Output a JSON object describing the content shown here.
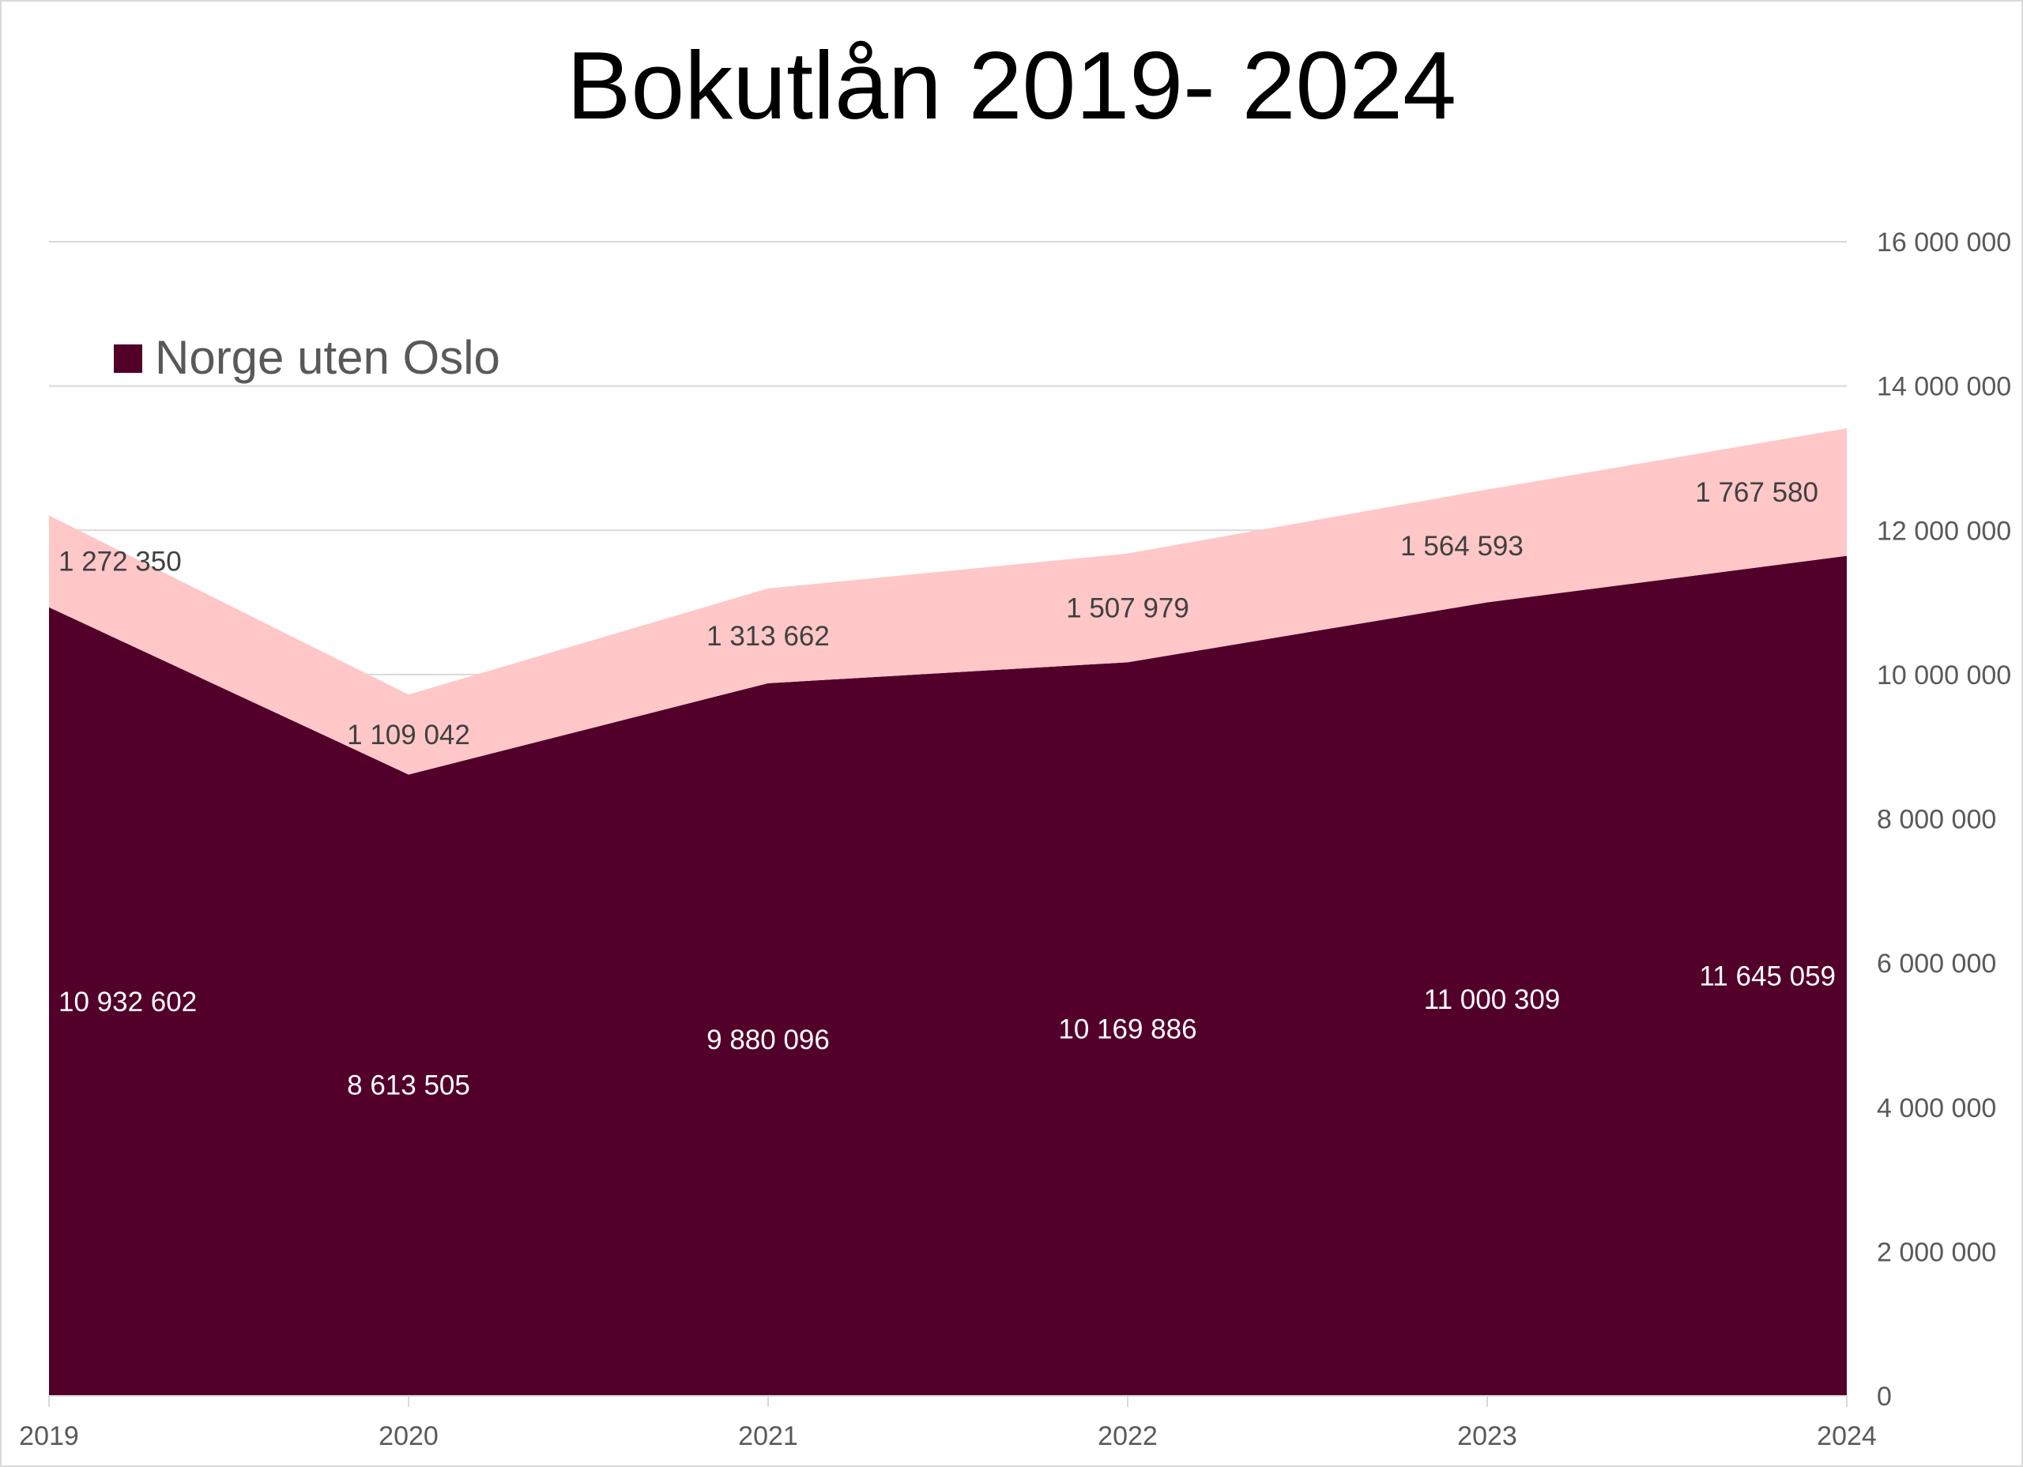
{
  "chart_data": {
    "type": "area",
    "stacked": true,
    "title": "Bokutlån 2019- 2024",
    "categories": [
      "2019",
      "2020",
      "2021",
      "2022",
      "2023",
      "2024"
    ],
    "series": [
      {
        "name": "Norge uten Oslo",
        "color": "#52002a",
        "values": [
          10932602,
          8613505,
          9880096,
          10169886,
          11000309,
          11645059
        ],
        "labels": [
          "10 932 602",
          "8 613 505",
          "9 880 096",
          "10 169 886",
          "11 000 309",
          "11 645 059"
        ]
      },
      {
        "color": "#ffc7c7",
        "values": [
          1272350,
          1109042,
          1313662,
          1507979,
          1564593,
          1767580
        ],
        "labels": [
          "1 272 350",
          "1 109 042",
          "1 313 662",
          "1 507 979",
          "1 564 593",
          "1 767 580"
        ]
      }
    ],
    "ylim": [
      0,
      16000000
    ],
    "yticks": [
      0,
      2000000,
      4000000,
      6000000,
      8000000,
      10000000,
      12000000,
      14000000,
      16000000
    ],
    "ytick_labels": [
      "0",
      "2 000 000",
      "4 000 000",
      "6 000 000",
      "8 000 000",
      "10 000 000",
      "12 000 000",
      "14 000 000",
      "16 000 000"
    ],
    "y_axis_side": "right",
    "grid": true,
    "legend": {
      "placement": "top-left",
      "entries": [
        "Norge uten Oslo"
      ]
    }
  }
}
